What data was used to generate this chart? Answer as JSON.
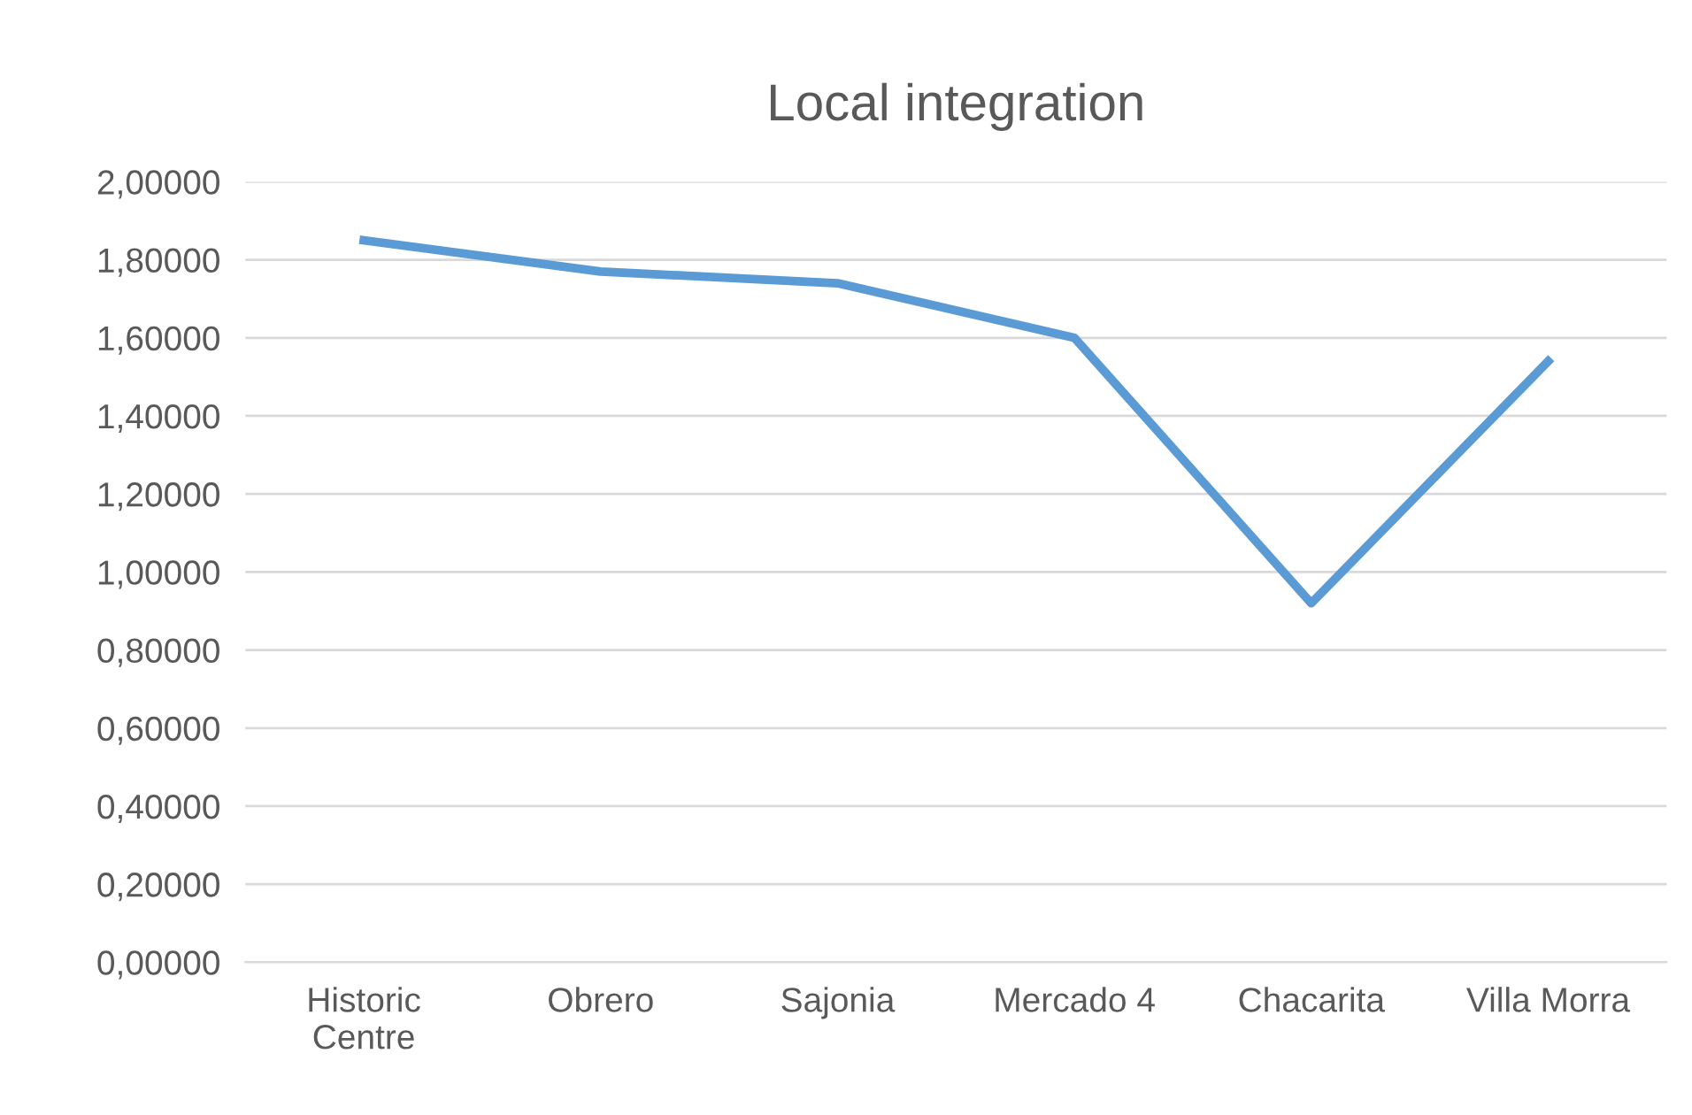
{
  "chart_data": {
    "type": "line",
    "title": "Local integration",
    "categories": [
      "Historic\nCentre",
      "Obrero",
      "Sajonia",
      "Mercado 4",
      "Chacarita",
      "Villa Morra"
    ],
    "series": [
      {
        "color": "#5b9bd5",
        "values": [
          1.85,
          1.77,
          1.74,
          1.6,
          0.92,
          1.54
        ]
      }
    ],
    "ylim": [
      0,
      2
    ],
    "yticks": [
      {
        "value": 0,
        "label": "0,00000"
      },
      {
        "value": 0.2,
        "label": "0,20000"
      },
      {
        "value": 0.4,
        "label": "0,40000"
      },
      {
        "value": 0.6,
        "label": "0,60000"
      },
      {
        "value": 0.8,
        "label": "0,80000"
      },
      {
        "value": 1.0,
        "label": "1,00000"
      },
      {
        "value": 1.2,
        "label": "1,20000"
      },
      {
        "value": 1.4,
        "label": "1,40000"
      },
      {
        "value": 1.6,
        "label": "1,60000"
      },
      {
        "value": 1.8,
        "label": "1,80000"
      },
      {
        "value": 2.0,
        "label": "2,00000"
      }
    ],
    "grid": "y",
    "marker": "none",
    "line_style": "solid"
  }
}
